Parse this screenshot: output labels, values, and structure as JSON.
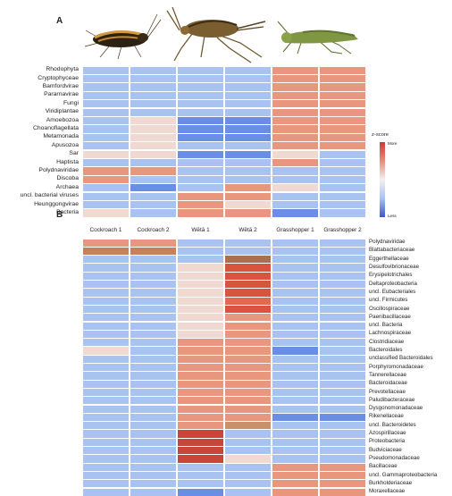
{
  "panel_a": {
    "letter": "A",
    "rows": [
      "Rhodophyta",
      "Cryptophyceae",
      "Bamfordvirae",
      "Pararnavirae",
      "Fungi",
      "Viridiplantae",
      "Amoebozoa",
      "Choanoflagellata",
      "Metamonada",
      "Apusozoa",
      "Sar",
      "Haptista",
      "Polydnaviridae",
      "Discoba",
      "Archaea",
      "uncl. bacterial viruses",
      "Heunggongvirae",
      "Bacteria"
    ],
    "legend": {
      "title": "z-score",
      "high": "More",
      "low": "Less"
    },
    "colors": [
      [
        "#a9c3f0",
        "#a9c3f0",
        "#a9c3f0",
        "#a9c3f0",
        "#e9967f",
        "#e9967f"
      ],
      [
        "#a9c3f0",
        "#a9c3f0",
        "#a9c3f0",
        "#a9c3f0",
        "#e9967f",
        "#e9967f"
      ],
      [
        "#a9c3f0",
        "#a9c3f0",
        "#a9c3f0",
        "#a9c3f0",
        "#e9967f",
        "#e9967f"
      ],
      [
        "#a9c3f0",
        "#a9c3f0",
        "#a9c3f0",
        "#a9c3f0",
        "#e9967f",
        "#e9967f"
      ],
      [
        "#a9c3f0",
        "#a9c3f0",
        "#a9c3f0",
        "#a9c3f0",
        "#e9967f",
        "#e9967f"
      ],
      [
        "#a9c3f0",
        "#a9c3f0",
        "#a9c3f0",
        "#a9c3f0",
        "#e9967f",
        "#e9967f"
      ],
      [
        "#a9c3f0",
        "#efd9d0",
        "#6a8de6",
        "#6a8de6",
        "#e9967f",
        "#e9967f"
      ],
      [
        "#a9c3f0",
        "#efd9d0",
        "#6a8de6",
        "#6a8de6",
        "#e9967f",
        "#e9967f"
      ],
      [
        "#a9c3f0",
        "#efd9d0",
        "#6a8de6",
        "#6a8de6",
        "#e9967f",
        "#e9967f"
      ],
      [
        "#a9c3f0",
        "#efd9d0",
        "#a9c3f0",
        "#a9c3f0",
        "#e9967f",
        "#e9967f"
      ],
      [
        "#efd9d0",
        "#efd9d0",
        "#6a8de6",
        "#6a8de6",
        "#efd9d0",
        "#a9c3f0"
      ],
      [
        "#a9c3f0",
        "#a9c3f0",
        "#a9c3f0",
        "#a9c3f0",
        "#e9967f",
        "#a9c3f0"
      ],
      [
        "#e9967f",
        "#e9967f",
        "#a9c3f0",
        "#a9c3f0",
        "#a9c3f0",
        "#a9c3f0"
      ],
      [
        "#e9967f",
        "#a9c3f0",
        "#a9c3f0",
        "#a9c3f0",
        "#a9c3f0",
        "#a9c3f0"
      ],
      [
        "#a9c3f0",
        "#6a8de6",
        "#a9c3f0",
        "#e9967f",
        "#efd9d0",
        "#a9c3f0"
      ],
      [
        "#a9c3f0",
        "#a9c3f0",
        "#e9967f",
        "#e9967f",
        "#a9c3f0",
        "#a9c3f0"
      ],
      [
        "#a9c3f0",
        "#a9c3f0",
        "#e9967f",
        "#efd9d0",
        "#a9c3f0",
        "#a9c3f0"
      ],
      [
        "#efd9d0",
        "#a9c3f0",
        "#e9967f",
        "#e9967f",
        "#6a8de6",
        "#a9c3f0"
      ]
    ]
  },
  "panel_b": {
    "letter": "B",
    "columns": [
      "Cockroach 1",
      "Cockroach 2",
      "Wētā 1",
      "Wētā 2",
      "Grasshopper 1",
      "Grasshopper 2"
    ],
    "rows": [
      "Polydnaviridae",
      "Blattabacteriaceae",
      "Eggerthellaceae",
      "Desulfovibrionaceae",
      "Erysipelotrichales",
      "Deltaproteobacteria",
      "uncl. Eubacteriales",
      "uncl. Firmicutes",
      "Oscillospiraceae",
      "Paenibacillaceae",
      "uncl. Bacteria",
      "Lachnospiraceae",
      "Clostridiaceae",
      "Bacteroidales",
      "unclassified Bacteroidales",
      "Porphyromonadaceae",
      "Tannerellaceae",
      "Bacteroidaceae",
      "Prevotellaceae",
      "Paludibacteraceae",
      "Dysgonomonadaceae",
      "Rikenellaceae",
      "uncl. Bacteroidetes",
      "Azospirillaceae",
      "Proteobacteria",
      "Budviciaceae",
      "Pseudomonadaceae",
      "Bacillaceae",
      "uncl. Gammaproteobacteria",
      "Burkholderiaceae",
      "Moraxellaceae"
    ],
    "colors": [
      [
        "#e9967f",
        "#e9967f",
        "#a9c3f0",
        "#a9c3f0",
        "#a9c3f0",
        "#a9c3f0"
      ],
      [
        "#c97f5a",
        "#c97f5a",
        "#a9c3f0",
        "#a9c3f0",
        "#a9c3f0",
        "#a9c3f0"
      ],
      [
        "#a9c3f0",
        "#a9c3f0",
        "#a9c3f0",
        "#a8704e",
        "#a9c3f0",
        "#a9c3f0"
      ],
      [
        "#a9c3f0",
        "#a9c3f0",
        "#efd9d0",
        "#d9533e",
        "#a9c3f0",
        "#a9c3f0"
      ],
      [
        "#a9c3f0",
        "#a9c3f0",
        "#efd9d0",
        "#d9533e",
        "#a9c3f0",
        "#a9c3f0"
      ],
      [
        "#a9c3f0",
        "#a9c3f0",
        "#efd9d0",
        "#d9533e",
        "#a9c3f0",
        "#a9c3f0"
      ],
      [
        "#a9c3f0",
        "#a9c3f0",
        "#efd9d0",
        "#d9533e",
        "#a9c3f0",
        "#a9c3f0"
      ],
      [
        "#a9c3f0",
        "#a9c3f0",
        "#efd9d0",
        "#e06a52",
        "#a9c3f0",
        "#a9c3f0"
      ],
      [
        "#a9c3f0",
        "#a9c3f0",
        "#efd9d0",
        "#d9533e",
        "#a9c3f0",
        "#a9c3f0"
      ],
      [
        "#a9c3f0",
        "#a9c3f0",
        "#efd9d0",
        "#e9967f",
        "#a9c3f0",
        "#a9c3f0"
      ],
      [
        "#a9c3f0",
        "#a9c3f0",
        "#efd9d0",
        "#e9967f",
        "#a9c3f0",
        "#a9c3f0"
      ],
      [
        "#a9c3f0",
        "#a9c3f0",
        "#efd9d0",
        "#e9967f",
        "#a9c3f0",
        "#a9c3f0"
      ],
      [
        "#a9c3f0",
        "#a9c3f0",
        "#e9967f",
        "#e9967f",
        "#a9c3f0",
        "#a9c3f0"
      ],
      [
        "#efd9d0",
        "#a9c3f0",
        "#e9967f",
        "#e9967f",
        "#6a8de6",
        "#a9c3f0"
      ],
      [
        "#a9c3f0",
        "#a9c3f0",
        "#e9967f",
        "#e9967f",
        "#a9c3f0",
        "#a9c3f0"
      ],
      [
        "#a9c3f0",
        "#a9c3f0",
        "#e9967f",
        "#e9967f",
        "#a9c3f0",
        "#a9c3f0"
      ],
      [
        "#a9c3f0",
        "#a9c3f0",
        "#e9967f",
        "#e9967f",
        "#a9c3f0",
        "#a9c3f0"
      ],
      [
        "#a9c3f0",
        "#a9c3f0",
        "#e9967f",
        "#e9967f",
        "#a9c3f0",
        "#a9c3f0"
      ],
      [
        "#a9c3f0",
        "#a9c3f0",
        "#e9967f",
        "#e9967f",
        "#a9c3f0",
        "#a9c3f0"
      ],
      [
        "#a9c3f0",
        "#a9c3f0",
        "#e9967f",
        "#e9967f",
        "#a9c3f0",
        "#a9c3f0"
      ],
      [
        "#a9c3f0",
        "#a9c3f0",
        "#e9967f",
        "#e9967f",
        "#a9c3f0",
        "#a9c3f0"
      ],
      [
        "#a9c3f0",
        "#a9c3f0",
        "#e9967f",
        "#e9967f",
        "#6a8de6",
        "#6a8de6"
      ],
      [
        "#a9c3f0",
        "#a9c3f0",
        "#e9967f",
        "#c9906a",
        "#a9c3f0",
        "#a9c3f0"
      ],
      [
        "#a9c3f0",
        "#a9c3f0",
        "#c8453a",
        "#a9c3f0",
        "#a9c3f0",
        "#a9c3f0"
      ],
      [
        "#a9c3f0",
        "#a9c3f0",
        "#c8453a",
        "#a9c3f0",
        "#a9c3f0",
        "#a9c3f0"
      ],
      [
        "#a9c3f0",
        "#a9c3f0",
        "#c8453a",
        "#a9c3f0",
        "#a9c3f0",
        "#a9c3f0"
      ],
      [
        "#a9c3f0",
        "#a9c3f0",
        "#c8453a",
        "#efd9d0",
        "#a9c3f0",
        "#a9c3f0"
      ],
      [
        "#a9c3f0",
        "#a9c3f0",
        "#a9c3f0",
        "#a9c3f0",
        "#e9967f",
        "#e9967f"
      ],
      [
        "#a9c3f0",
        "#a9c3f0",
        "#a9c3f0",
        "#a9c3f0",
        "#e9967f",
        "#e9967f"
      ],
      [
        "#a9c3f0",
        "#a9c3f0",
        "#a9c3f0",
        "#a9c3f0",
        "#e9967f",
        "#e9967f"
      ],
      [
        "#a9c3f0",
        "#a9c3f0",
        "#6a8de6",
        "#a9c3f0",
        "#e9967f",
        "#e9967f"
      ]
    ]
  }
}
